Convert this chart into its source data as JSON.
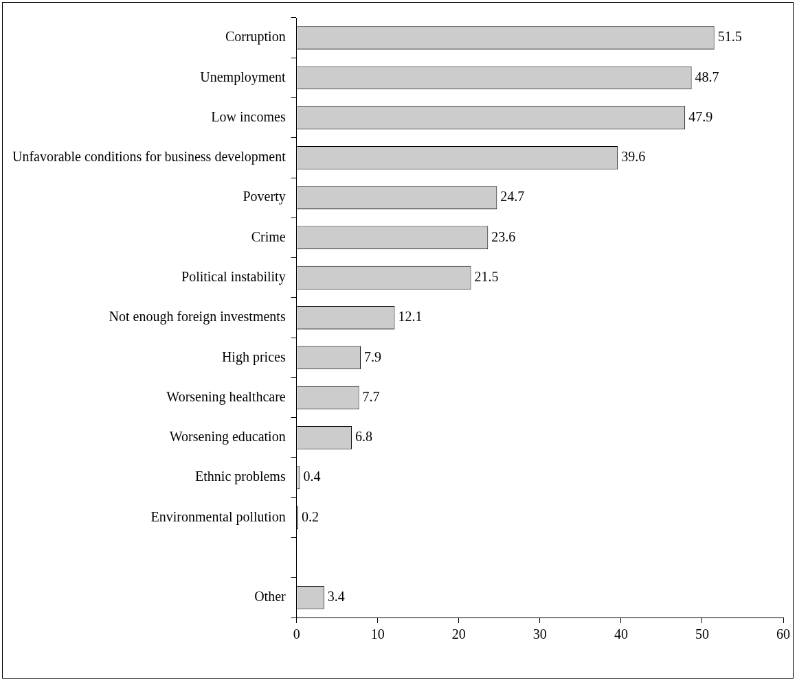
{
  "chart_data": {
    "type": "bar",
    "orientation": "horizontal",
    "categories": [
      "Corruption",
      "Unemployment",
      "Low incomes",
      "Unfavorable conditions for business development",
      "Poverty",
      "Crime",
      "Political instability",
      "Not enough foreign investments",
      "High prices",
      "Worsening healthcare",
      "Worsening education",
      "Ethnic problems",
      "Environmental pollution",
      null,
      "Other"
    ],
    "values": [
      51.5,
      48.7,
      47.9,
      39.6,
      24.7,
      23.6,
      21.5,
      12.1,
      7.9,
      7.7,
      6.8,
      0.4,
      0.2,
      null,
      3.4
    ],
    "color": "#cccccc",
    "xlim": [
      0,
      60
    ],
    "xticks": [
      0,
      10,
      20,
      30,
      40,
      50,
      60
    ],
    "data_labels": true,
    "grid": false,
    "legend": false
  }
}
